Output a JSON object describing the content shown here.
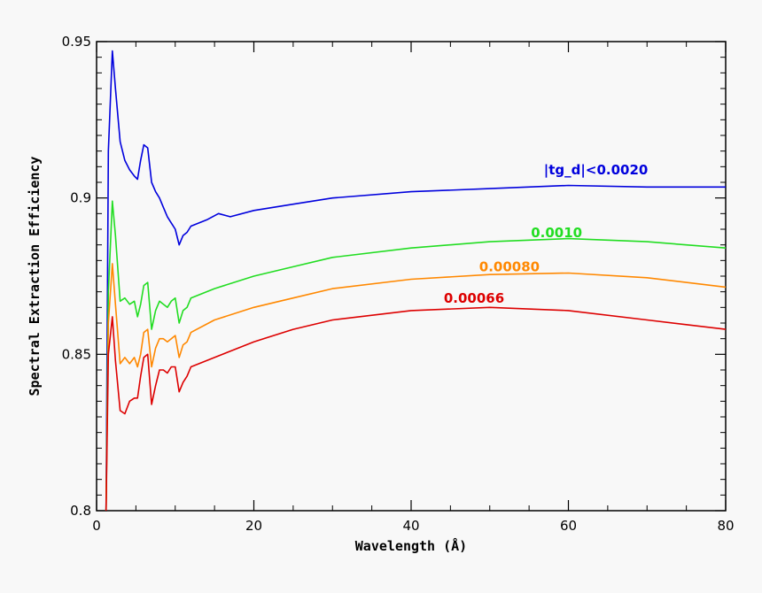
{
  "chart_data": {
    "type": "line",
    "title": "",
    "xlabel": "Wavelength (Å)",
    "ylabel": "Spectral Extraction Efficiency",
    "xlim": [
      0,
      80
    ],
    "ylim": [
      0.8,
      0.95
    ],
    "xticks": [
      0,
      20,
      40,
      60,
      80
    ],
    "xtick_labels": [
      "0",
      "20",
      "40",
      "60",
      "80"
    ],
    "yticks": [
      0.8,
      0.85,
      0.9,
      0.95
    ],
    "ytick_labels": [
      "0.8",
      "0.85",
      "0.9",
      "0.95"
    ],
    "grid": false,
    "legend": "inline labels",
    "series": [
      {
        "name": "|tg_d|<0.0020",
        "color": "#0000dd",
        "x": [
          1.2,
          1.5,
          2.0,
          2.4,
          3.0,
          3.6,
          4.2,
          4.8,
          5.2,
          5.6,
          6.0,
          6.5,
          7.0,
          7.5,
          8.0,
          8.5,
          9.0,
          9.5,
          10.0,
          10.5,
          11.0,
          11.5,
          12.0,
          14.0,
          15.5,
          17.0,
          20.0,
          25.0,
          30.0,
          40.0,
          50.0,
          60.0,
          70.0,
          80.0
        ],
        "y": [
          0.8,
          0.915,
          0.947,
          0.935,
          0.918,
          0.912,
          0.909,
          0.907,
          0.906,
          0.912,
          0.917,
          0.916,
          0.905,
          0.902,
          0.9,
          0.897,
          0.894,
          0.892,
          0.89,
          0.885,
          0.888,
          0.889,
          0.891,
          0.893,
          0.895,
          0.894,
          0.896,
          0.898,
          0.9,
          0.902,
          0.903,
          0.904,
          0.9035,
          0.9035
        ]
      },
      {
        "name": "0.0010",
        "color": "#22dd22",
        "x": [
          1.2,
          1.5,
          2.0,
          2.4,
          3.0,
          3.6,
          4.2,
          4.8,
          5.2,
          5.6,
          6.0,
          6.5,
          7.0,
          7.5,
          8.0,
          8.5,
          9.0,
          9.5,
          10.0,
          10.5,
          11.0,
          11.5,
          12.0,
          15.0,
          20.0,
          25.0,
          30.0,
          40.0,
          50.0,
          60.0,
          70.0,
          80.0
        ],
        "y": [
          0.8,
          0.87,
          0.899,
          0.888,
          0.867,
          0.868,
          0.866,
          0.867,
          0.862,
          0.866,
          0.872,
          0.873,
          0.858,
          0.864,
          0.867,
          0.866,
          0.865,
          0.867,
          0.868,
          0.86,
          0.864,
          0.865,
          0.868,
          0.871,
          0.875,
          0.878,
          0.881,
          0.884,
          0.886,
          0.887,
          0.886,
          0.884
        ]
      },
      {
        "name": "0.00080",
        "color": "#ff8800",
        "x": [
          1.2,
          1.5,
          2.0,
          2.4,
          3.0,
          3.6,
          4.2,
          4.8,
          5.2,
          5.6,
          6.0,
          6.5,
          7.0,
          7.5,
          8.0,
          8.5,
          9.0,
          9.5,
          10.0,
          10.5,
          11.0,
          11.5,
          12.0,
          15.0,
          20.0,
          25.0,
          30.0,
          40.0,
          50.0,
          60.0,
          70.0,
          80.0
        ],
        "y": [
          0.8,
          0.86,
          0.879,
          0.866,
          0.847,
          0.849,
          0.847,
          0.849,
          0.846,
          0.85,
          0.857,
          0.858,
          0.846,
          0.852,
          0.855,
          0.855,
          0.854,
          0.855,
          0.856,
          0.849,
          0.853,
          0.854,
          0.857,
          0.861,
          0.865,
          0.868,
          0.871,
          0.874,
          0.8755,
          0.876,
          0.8745,
          0.8715
        ]
      },
      {
        "name": "0.00066",
        "color": "#dd0000",
        "x": [
          1.2,
          1.5,
          2.0,
          2.4,
          3.0,
          3.6,
          4.2,
          4.8,
          5.2,
          5.6,
          6.0,
          6.5,
          7.0,
          7.5,
          8.0,
          8.5,
          9.0,
          9.5,
          10.0,
          10.5,
          11.0,
          11.5,
          12.0,
          15.0,
          20.0,
          25.0,
          30.0,
          40.0,
          50.0,
          60.0,
          70.0,
          80.0
        ],
        "y": [
          0.8,
          0.85,
          0.862,
          0.848,
          0.832,
          0.831,
          0.835,
          0.836,
          0.836,
          0.843,
          0.849,
          0.85,
          0.834,
          0.84,
          0.845,
          0.845,
          0.844,
          0.846,
          0.846,
          0.838,
          0.841,
          0.843,
          0.846,
          0.849,
          0.854,
          0.858,
          0.861,
          0.864,
          0.865,
          0.864,
          0.861,
          0.858
        ]
      }
    ],
    "series_labels": [
      {
        "text": "|tg_d|<0.0020",
        "x": 63.5,
        "y": 0.9075
      },
      {
        "text": "0.0010",
        "x": 58.5,
        "y": 0.8875
      },
      {
        "text": "0.00080",
        "x": 52.5,
        "y": 0.8765
      },
      {
        "text": "0.00066",
        "x": 48.0,
        "y": 0.8665
      }
    ]
  }
}
